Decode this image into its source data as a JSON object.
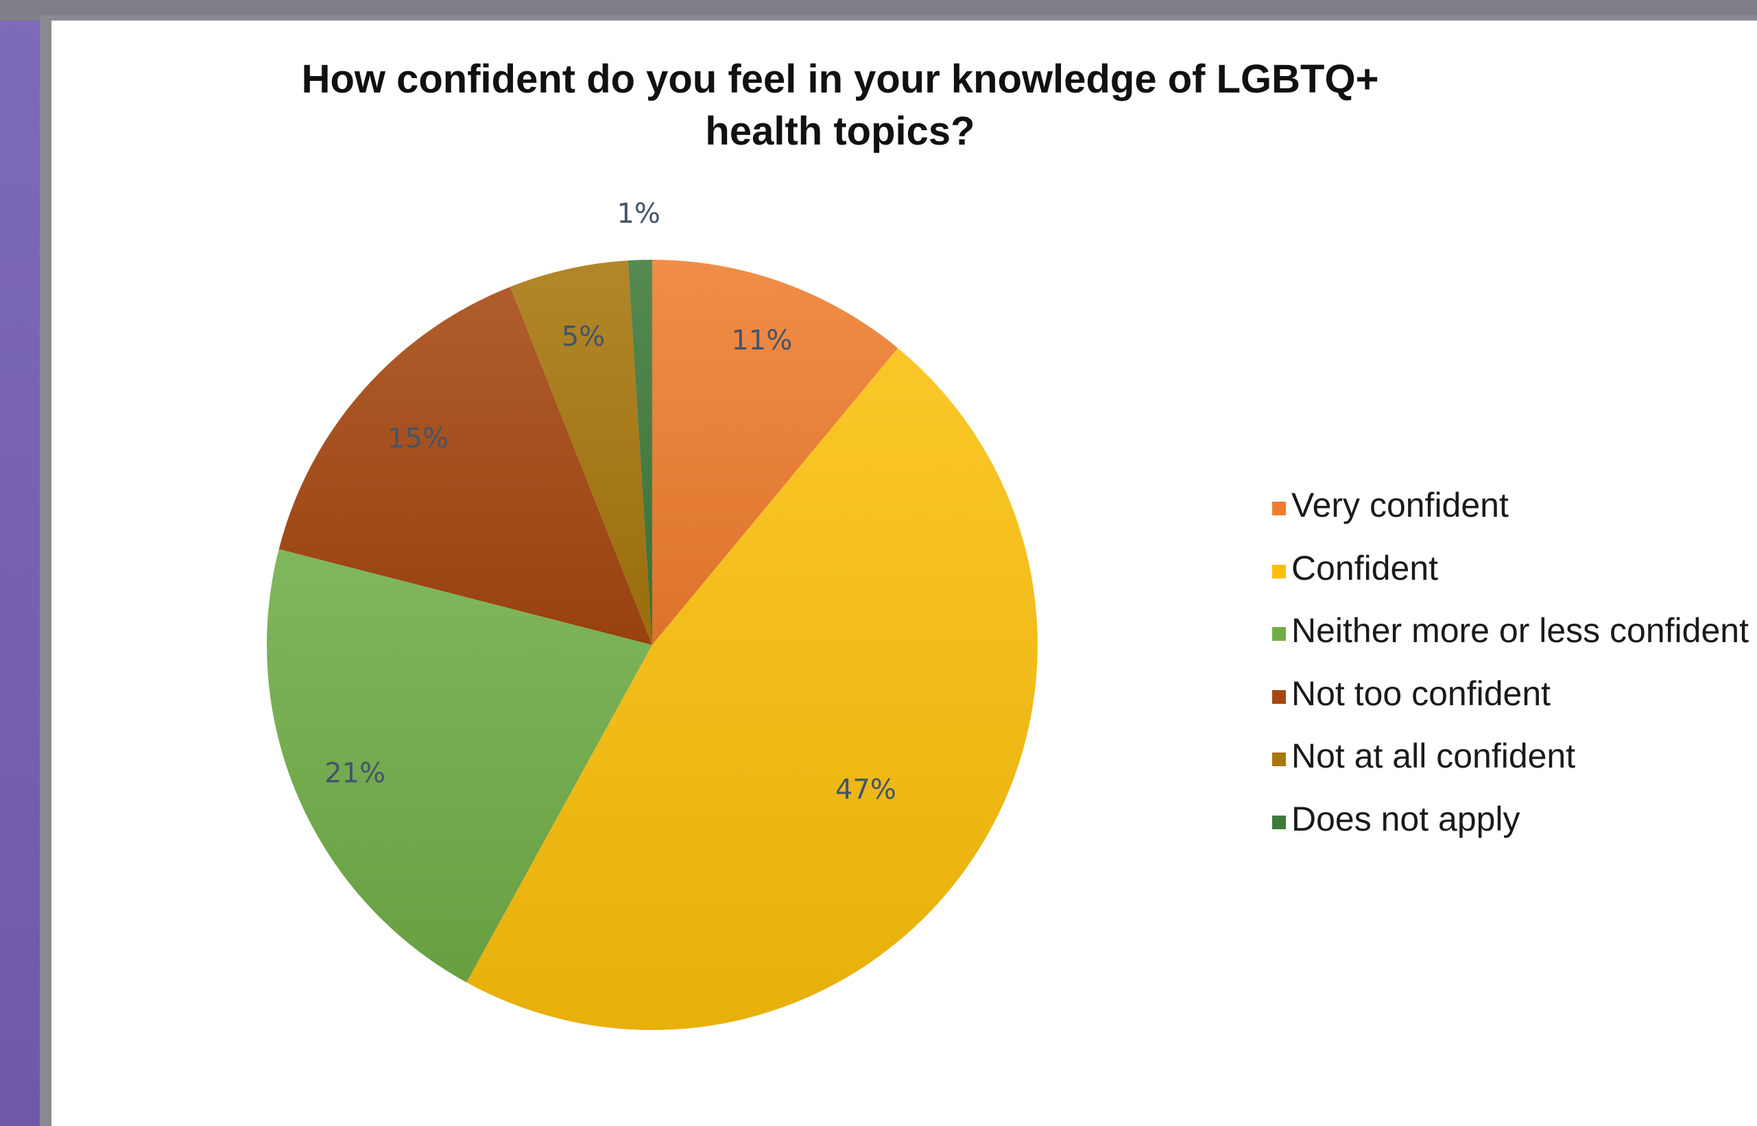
{
  "chart_data": {
    "type": "pie",
    "title": "How confident do you feel in your knowledge of LGBTQ+ health topics?",
    "categories": [
      "Very confident",
      "Confident",
      "Neither more or less confident",
      "Not too confident",
      "Not at all confident",
      "Does not apply"
    ],
    "values": [
      11,
      47,
      21,
      15,
      5,
      1
    ],
    "data_labels": [
      "11%",
      "47%",
      "21%",
      "15%",
      "5%",
      "1%"
    ],
    "colors": [
      "#ef7d2f",
      "#fbbf0b",
      "#70ad47",
      "#a5470f",
      "#a7770c",
      "#3e7a3a"
    ],
    "legend_position": "right",
    "start_angle": "12 o'clock",
    "direction": "clockwise"
  }
}
